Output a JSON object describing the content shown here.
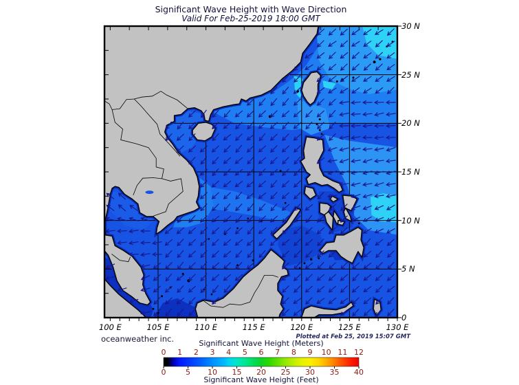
{
  "title": "Significant Wave Height with Wave Direction",
  "subtitle": "Valid For Feb-25-2019 18:00 GMT",
  "credit": "oceanweather inc.",
  "plotted": "Plotted at Feb 25, 2019 15:07 GMT",
  "axes": {
    "lon_ticks": [
      {
        "lon": 100,
        "label": "100 E"
      },
      {
        "lon": 105,
        "label": "105 E"
      },
      {
        "lon": 110,
        "label": "110 E"
      },
      {
        "lon": 115,
        "label": "115 E"
      },
      {
        "lon": 120,
        "label": "120 E"
      },
      {
        "lon": 125,
        "label": "125 E"
      },
      {
        "lon": 130,
        "label": "130 E"
      }
    ],
    "lat_ticks": [
      {
        "lat": 30,
        "label": "30 N"
      },
      {
        "lat": 25,
        "label": "25 N"
      },
      {
        "lat": 20,
        "label": "20 N"
      },
      {
        "lat": 15,
        "label": "15 N"
      },
      {
        "lat": 10,
        "label": "10 N"
      },
      {
        "lat": 5,
        "label": "5 N"
      },
      {
        "lat": 0,
        "label": "0"
      }
    ]
  },
  "legend": {
    "meters_title": "Significant Wave Height (Meters)",
    "feet_title": "Significant Wave Height (Feet)",
    "meters_ticks": [
      0,
      1,
      2,
      3,
      4,
      5,
      6,
      7,
      8,
      9,
      10,
      11,
      12
    ],
    "feet_ticks": [
      0,
      5,
      10,
      15,
      20,
      25,
      30,
      35,
      40
    ],
    "gradient": [
      [
        0,
        "#000000"
      ],
      [
        0.02,
        "#000000"
      ],
      [
        0.05,
        "#0000b0"
      ],
      [
        0.08,
        "#0018ff"
      ],
      [
        0.17,
        "#0050ff"
      ],
      [
        0.25,
        "#0090ff"
      ],
      [
        0.31,
        "#00b8ff"
      ],
      [
        0.335,
        "#00d4f0"
      ],
      [
        0.375,
        "#00e6c4"
      ],
      [
        0.42,
        "#00e890"
      ],
      [
        0.46,
        "#00dc5c"
      ],
      [
        0.5,
        "#0cd426"
      ],
      [
        0.54,
        "#2cd800"
      ],
      [
        0.58,
        "#5ce000"
      ],
      [
        0.625,
        "#96e800"
      ],
      [
        0.67,
        "#c4ee00"
      ],
      [
        0.71,
        "#e6f200"
      ],
      [
        0.75,
        "#f8f000"
      ],
      [
        0.79,
        "#ffd800"
      ],
      [
        0.835,
        "#ffac00"
      ],
      [
        0.875,
        "#ff7c00"
      ],
      [
        0.92,
        "#ff4600"
      ],
      [
        0.96,
        "#fc1c00"
      ],
      [
        1,
        "#f00000"
      ]
    ]
  },
  "map_colors": {
    "land": "#c2c2c2",
    "coast": "#000000",
    "coastal_shallow": "#0b2eb8",
    "ocean_base": "#1754e4",
    "ocean_light1": "#1e7ef2",
    "ocean_light2": "#2b9bf5",
    "ocean_cyan": "#2fd2f7",
    "ocean_mid": "#1e74f0",
    "ocean_tonkin": "#1c66ec",
    "ocean_gulf": "#1a5ce8",
    "ocean_dark": "#0c30c0",
    "ocean_sulu": "#1244d4",
    "ocean_moro": "#0d34c6",
    "ocean_ephil": "#2d93f5",
    "arrow": "#18188e",
    "grid": "#000000",
    "frame": "#000000"
  }
}
